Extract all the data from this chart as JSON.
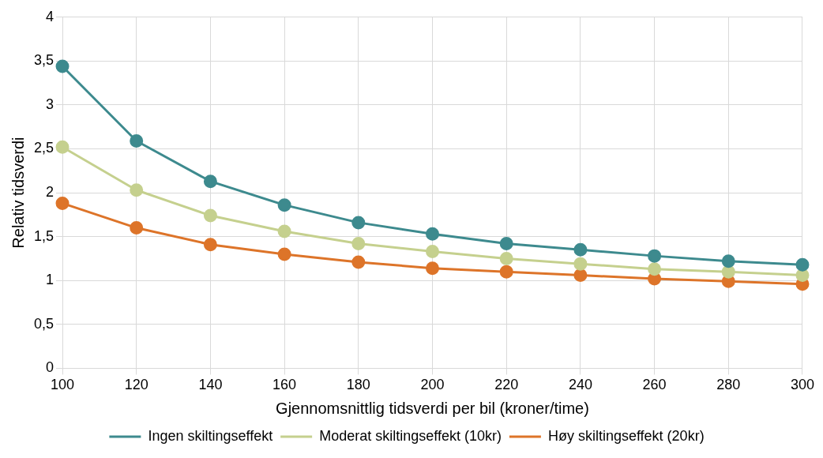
{
  "chart_data": {
    "type": "line",
    "xlabel": "Gjennomsnittlig tidsverdi per bil (kroner/time)",
    "ylabel": "Relativ tidsverdi",
    "x": [
      100,
      120,
      140,
      160,
      180,
      200,
      220,
      240,
      260,
      280,
      300
    ],
    "series": [
      {
        "name": "Ingen skiltingseffekt",
        "color": "#3d8a8e",
        "values": [
          3.44,
          2.59,
          2.13,
          1.86,
          1.66,
          1.53,
          1.42,
          1.35,
          1.28,
          1.22,
          1.18
        ]
      },
      {
        "name": "Moderat skiltingseffekt (10kr)",
        "color": "#c5d08e",
        "values": [
          2.52,
          2.03,
          1.74,
          1.56,
          1.42,
          1.33,
          1.25,
          1.19,
          1.13,
          1.1,
          1.06
        ]
      },
      {
        "name": "Høy skiltingseffekt (20kr)",
        "color": "#dd7429",
        "values": [
          1.88,
          1.6,
          1.41,
          1.3,
          1.21,
          1.14,
          1.1,
          1.06,
          1.02,
          0.99,
          0.96
        ]
      }
    ],
    "xlim": [
      100,
      300
    ],
    "xticks": [
      100,
      120,
      140,
      160,
      180,
      200,
      220,
      240,
      260,
      280,
      300
    ],
    "ylim": [
      0,
      4
    ],
    "yticks": [
      0,
      {
        "value": 0.5,
        "label": "0,5"
      },
      1,
      {
        "value": 1.5,
        "label": "1,5"
      },
      2,
      {
        "value": 2.5,
        "label": "2,5"
      },
      3,
      {
        "value": 3.5,
        "label": "3,5"
      },
      4
    ],
    "grid": true,
    "legend": "bottom",
    "marker": "circle",
    "line_style": "solid"
  }
}
